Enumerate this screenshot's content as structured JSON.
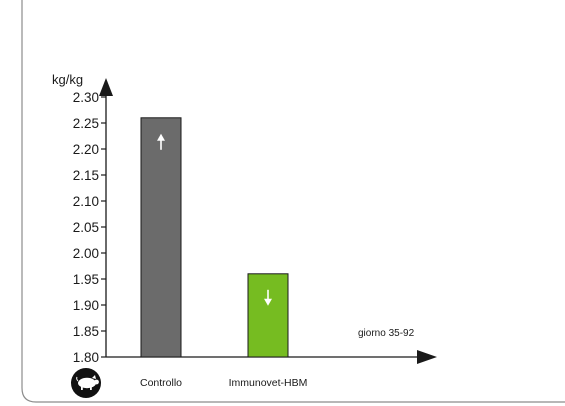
{
  "colors": {
    "frame": "#8c8c8c",
    "axis": "#1a1a1a",
    "arrow_mark": "#ffffff",
    "pig_icon_bg": "#111111"
  },
  "chart_data": {
    "type": "bar",
    "categories": [
      "Controllo",
      "Immunovet-HBM"
    ],
    "values": [
      2.26,
      1.96
    ],
    "bar_colors": [
      "#6b6b6b",
      "#76bc21"
    ],
    "bar_arrows": [
      "up",
      "down"
    ],
    "ylabel": "kg/kg",
    "xnote": "giorno 35-92",
    "ylim": [
      1.8,
      2.3
    ],
    "yticks": [
      "1.80",
      "1.85",
      "1.90",
      "1.95",
      "2.00",
      "2.05",
      "2.10",
      "2.15",
      "2.20",
      "2.25",
      "2.30"
    ],
    "grid": false,
    "x_axis_icon": "pig-icon"
  }
}
